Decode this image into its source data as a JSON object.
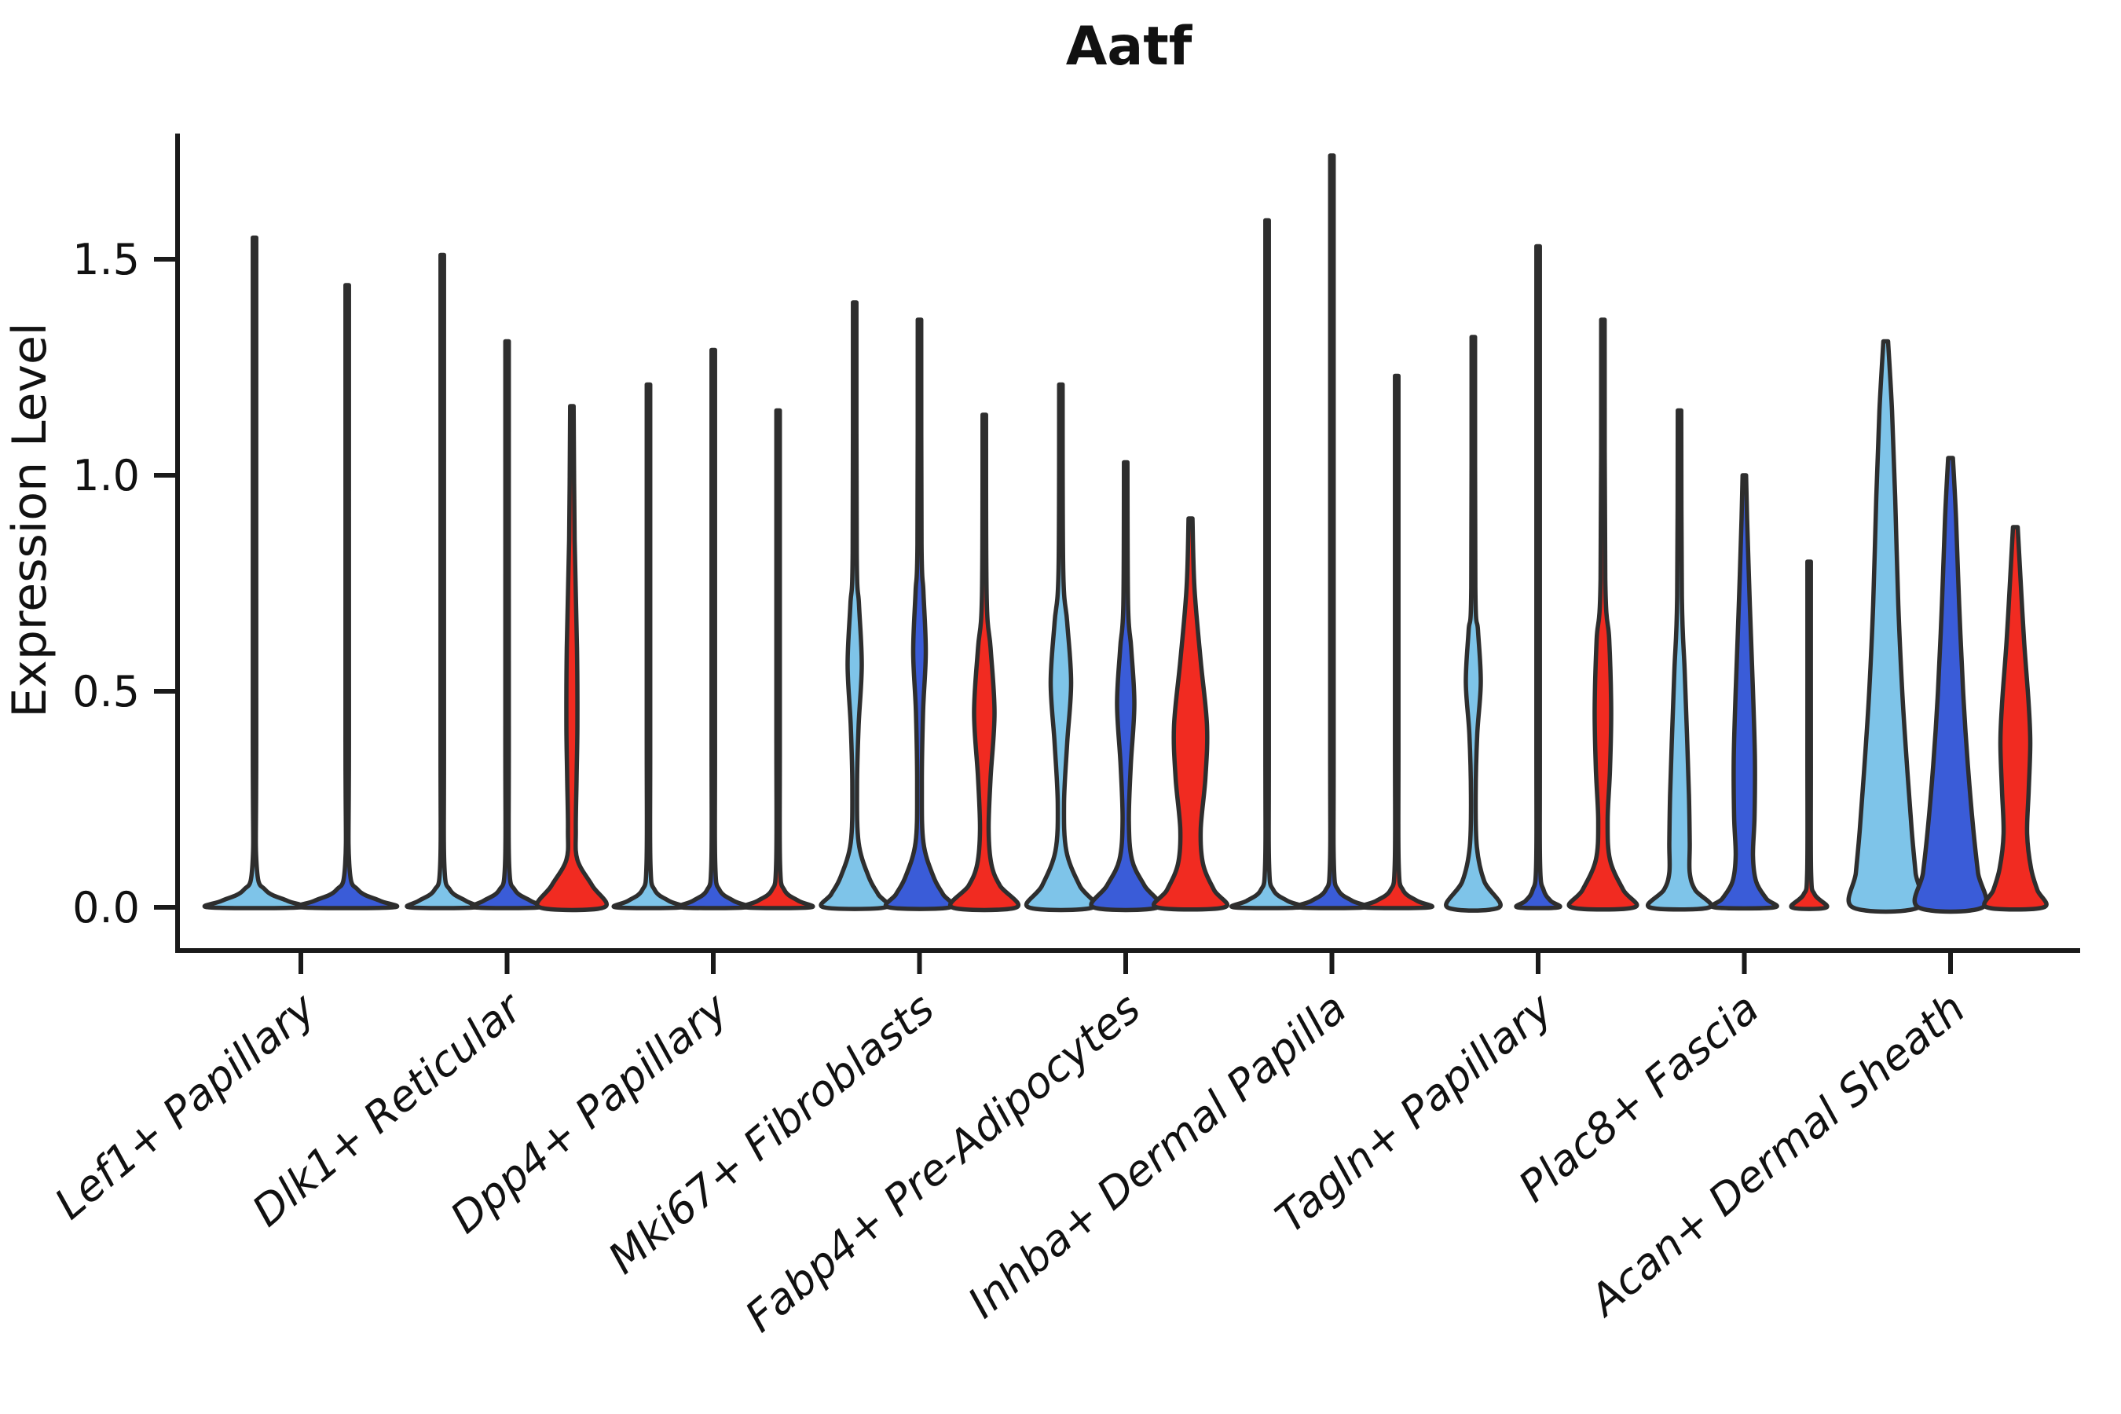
{
  "title": "Aatf",
  "chart_data": {
    "type": "violin",
    "title": "Aatf",
    "ylabel": "Expression Level",
    "xlabel": "",
    "grid": false,
    "legend_position": "none",
    "ylim": [
      0,
      1.79
    ],
    "ytick_values": [
      0,
      0.5,
      1.0,
      1.5
    ],
    "ytick_labels": [
      "0.0",
      "0.5",
      "1.0",
      "1.5"
    ],
    "palette": {
      "lightblue": "#7EC4E9",
      "blue": "#3A5CD8",
      "red": "#F12B21",
      "outline": "#2E2E2E"
    },
    "categories": [
      "Lef1+ Papillary",
      "Dlk1+ Reticular",
      "Dpp4+ Papillary",
      "Mki67+ Fibroblasts",
      "Fabp4+ Pre-Adipocytes",
      "Inhba+ Dermal Papilla",
      "Tagln+ Papillary",
      "Plac8+ Fascia",
      "Acan+ Dermal Sheath"
    ],
    "groups": [
      {
        "category": "Lef1+ Papillary",
        "violins": [
          {
            "color": "lightblue",
            "max": 1.55,
            "profile": [
              [
                1.55,
                2.2
              ],
              [
                0.4,
                2.2
              ],
              [
                0.1,
                2.6
              ],
              [
                0.04,
                14
              ],
              [
                0.015,
                42
              ],
              [
                0,
                58
              ]
            ]
          },
          {
            "color": "blue",
            "max": 1.44,
            "profile": [
              [
                1.44,
                2.2
              ],
              [
                0.4,
                2.2
              ],
              [
                0.1,
                2.6
              ],
              [
                0.04,
                14
              ],
              [
                0.015,
                42
              ],
              [
                0,
                58
              ]
            ]
          }
        ]
      },
      {
        "category": "Dlk1+ Reticular",
        "violins": [
          {
            "color": "lightblue",
            "max": 1.51,
            "profile": [
              [
                1.51,
                2.2
              ],
              [
                0.4,
                2.2
              ],
              [
                0.1,
                2.6
              ],
              [
                0.04,
                10
              ],
              [
                0.015,
                30
              ],
              [
                0,
                41
              ]
            ]
          },
          {
            "color": "blue",
            "max": 1.31,
            "profile": [
              [
                1.31,
                2.2
              ],
              [
                0.4,
                2.2
              ],
              [
                0.1,
                2.6
              ],
              [
                0.04,
                10
              ],
              [
                0.015,
                30
              ],
              [
                0,
                41
              ]
            ]
          },
          {
            "color": "red",
            "max": 1.16,
            "profile": [
              [
                1.16,
                2.2
              ],
              [
                0.85,
                3.5
              ],
              [
                0.6,
                6.5
              ],
              [
                0.42,
                7
              ],
              [
                0.3,
                6
              ],
              [
                0.18,
                5
              ],
              [
                0.11,
                7
              ],
              [
                0.05,
                26
              ],
              [
                0,
                41
              ]
            ]
          }
        ]
      },
      {
        "category": "Dpp4+ Papillary",
        "violins": [
          {
            "color": "lightblue",
            "max": 1.21,
            "profile": [
              [
                1.21,
                2.2
              ],
              [
                0.4,
                2.2
              ],
              [
                0.1,
                2.5
              ],
              [
                0.04,
                8
              ],
              [
                0.015,
                26
              ],
              [
                0,
                41
              ]
            ]
          },
          {
            "color": "blue",
            "max": 1.29,
            "profile": [
              [
                1.29,
                2.2
              ],
              [
                0.4,
                2.2
              ],
              [
                0.1,
                2.5
              ],
              [
                0.04,
                8
              ],
              [
                0.015,
                26
              ],
              [
                0,
                41
              ]
            ]
          },
          {
            "color": "red",
            "max": 1.15,
            "profile": [
              [
                1.15,
                2.2
              ],
              [
                0.4,
                2.2
              ],
              [
                0.1,
                2.5
              ],
              [
                0.04,
                8
              ],
              [
                0.015,
                26
              ],
              [
                0,
                41
              ]
            ]
          }
        ]
      },
      {
        "category": "Mki67+ Fibroblasts",
        "violins": [
          {
            "color": "lightblue",
            "max": 1.4,
            "profile": [
              [
                1.4,
                2.2
              ],
              [
                0.82,
                2.6
              ],
              [
                0.7,
                5.5
              ],
              [
                0.56,
                9
              ],
              [
                0.42,
                5
              ],
              [
                0.28,
                3
              ],
              [
                0.15,
                5
              ],
              [
                0.07,
                18
              ],
              [
                0.03,
                30
              ],
              [
                0,
                39
              ]
            ]
          },
          {
            "color": "blue",
            "max": 1.36,
            "profile": [
              [
                1.36,
                2.2
              ],
              [
                0.84,
                2.6
              ],
              [
                0.73,
                5
              ],
              [
                0.59,
                8
              ],
              [
                0.45,
                4.5
              ],
              [
                0.28,
                3
              ],
              [
                0.15,
                5
              ],
              [
                0.07,
                18
              ],
              [
                0.03,
                30
              ],
              [
                0,
                39
              ]
            ]
          },
          {
            "color": "red",
            "max": 1.14,
            "profile": [
              [
                1.14,
                2.2
              ],
              [
                0.72,
                3
              ],
              [
                0.6,
                8
              ],
              [
                0.45,
                13
              ],
              [
                0.3,
                8
              ],
              [
                0.18,
                5.5
              ],
              [
                0.1,
                9
              ],
              [
                0.05,
                20
              ],
              [
                0,
                41
              ]
            ]
          }
        ]
      },
      {
        "category": "Fabp4+ Pre-Adipocytes",
        "violins": [
          {
            "color": "lightblue",
            "max": 1.21,
            "profile": [
              [
                1.21,
                2.2
              ],
              [
                0.78,
                3
              ],
              [
                0.66,
                8
              ],
              [
                0.52,
                13
              ],
              [
                0.38,
                8
              ],
              [
                0.24,
                4
              ],
              [
                0.13,
                7
              ],
              [
                0.05,
                24
              ],
              [
                0,
                41
              ]
            ]
          },
          {
            "color": "blue",
            "max": 1.03,
            "profile": [
              [
                1.03,
                2.2
              ],
              [
                0.7,
                3
              ],
              [
                0.6,
                7
              ],
              [
                0.47,
                11
              ],
              [
                0.33,
                6.5
              ],
              [
                0.2,
                4
              ],
              [
                0.11,
                8
              ],
              [
                0.05,
                24
              ],
              [
                0,
                41
              ]
            ]
          },
          {
            "color": "red",
            "max": 0.9,
            "profile": [
              [
                0.9,
                2.5
              ],
              [
                0.74,
                5
              ],
              [
                0.57,
                13
              ],
              [
                0.42,
                21
              ],
              [
                0.3,
                19
              ],
              [
                0.18,
                13
              ],
              [
                0.1,
                16
              ],
              [
                0.04,
                30
              ],
              [
                0,
                43
              ]
            ]
          }
        ]
      },
      {
        "category": "Inhba+ Dermal Papilla",
        "violins": [
          {
            "color": "lightblue",
            "max": 1.59,
            "profile": [
              [
                1.59,
                2.2
              ],
              [
                0.4,
                2.2
              ],
              [
                0.1,
                2.5
              ],
              [
                0.04,
                8
              ],
              [
                0.015,
                26
              ],
              [
                0,
                42
              ]
            ]
          },
          {
            "color": "blue",
            "max": 1.74,
            "profile": [
              [
                1.74,
                2.2
              ],
              [
                0.4,
                2.2
              ],
              [
                0.1,
                2.5
              ],
              [
                0.04,
                8
              ],
              [
                0.015,
                26
              ],
              [
                0,
                42
              ]
            ]
          },
          {
            "color": "red",
            "max": 1.23,
            "profile": [
              [
                1.23,
                2.2
              ],
              [
                0.4,
                2.2
              ],
              [
                0.1,
                2.5
              ],
              [
                0.04,
                8
              ],
              [
                0.015,
                26
              ],
              [
                0,
                42
              ]
            ]
          }
        ]
      },
      {
        "category": "Tagln+ Papillary",
        "violins": [
          {
            "color": "lightblue",
            "max": 1.32,
            "profile": [
              [
                1.32,
                2.2
              ],
              [
                0.74,
                2.6
              ],
              [
                0.64,
                6
              ],
              [
                0.52,
                9.5
              ],
              [
                0.4,
                5
              ],
              [
                0.26,
                3
              ],
              [
                0.14,
                4.5
              ],
              [
                0.06,
                14
              ],
              [
                0,
                33
              ]
            ]
          },
          {
            "color": "blue",
            "max": 1.53,
            "profile": [
              [
                1.53,
                2.2
              ],
              [
                0.4,
                2.2
              ],
              [
                0.1,
                2.5
              ],
              [
                0.04,
                7
              ],
              [
                0.015,
                16
              ],
              [
                0,
                26
              ]
            ]
          },
          {
            "color": "red",
            "max": 1.36,
            "profile": [
              [
                1.36,
                2.2
              ],
              [
                0.76,
                3
              ],
              [
                0.62,
                8
              ],
              [
                0.46,
                10.5
              ],
              [
                0.32,
                9
              ],
              [
                0.2,
                6
              ],
              [
                0.11,
                9
              ],
              [
                0.04,
                26
              ],
              [
                0,
                40
              ]
            ]
          }
        ]
      },
      {
        "category": "Plac8+ Fascia",
        "violins": [
          {
            "color": "lightblue",
            "max": 1.15,
            "profile": [
              [
                1.15,
                2.2
              ],
              [
                0.72,
                3
              ],
              [
                0.55,
                6.5
              ],
              [
                0.4,
                9.5
              ],
              [
                0.26,
                12
              ],
              [
                0.15,
                13
              ],
              [
                0.08,
                13
              ],
              [
                0.04,
                20
              ],
              [
                0,
                38
              ]
            ]
          },
          {
            "color": "blue",
            "max": 1.0,
            "profile": [
              [
                1.0,
                2.2
              ],
              [
                0.9,
                3.5
              ],
              [
                0.7,
                7
              ],
              [
                0.5,
                11
              ],
              [
                0.34,
                13.5
              ],
              [
                0.21,
                13
              ],
              [
                0.12,
                11
              ],
              [
                0.06,
                15
              ],
              [
                0.02,
                28
              ],
              [
                0,
                38
              ]
            ]
          },
          {
            "color": "red",
            "max": 0.8,
            "profile": [
              [
                0.8,
                2.2
              ],
              [
                0.35,
                2.2
              ],
              [
                0.08,
                2.5
              ],
              [
                0.03,
                7
              ],
              [
                0,
                22
              ]
            ]
          }
        ]
      },
      {
        "category": "Acan+ Dermal Sheath",
        "violins": [
          {
            "color": "lightblue",
            "max": 1.31,
            "profile": [
              [
                1.31,
                3
              ],
              [
                1.15,
                8
              ],
              [
                0.95,
                12
              ],
              [
                0.7,
                16
              ],
              [
                0.5,
                21
              ],
              [
                0.33,
                27
              ],
              [
                0.18,
                33
              ],
              [
                0.08,
                38
              ],
              [
                0,
                42
              ]
            ]
          },
          {
            "color": "blue",
            "max": 1.04,
            "profile": [
              [
                1.04,
                3
              ],
              [
                0.9,
                7
              ],
              [
                0.7,
                11
              ],
              [
                0.5,
                16
              ],
              [
                0.33,
                22
              ],
              [
                0.18,
                29
              ],
              [
                0.08,
                35
              ],
              [
                0,
                41
              ]
            ]
          },
          {
            "color": "red",
            "max": 0.88,
            "profile": [
              [
                0.88,
                3
              ],
              [
                0.78,
                6
              ],
              [
                0.62,
                11
              ],
              [
                0.47,
                17
              ],
              [
                0.38,
                19
              ],
              [
                0.27,
                17
              ],
              [
                0.17,
                15
              ],
              [
                0.09,
                20
              ],
              [
                0.04,
                28
              ],
              [
                0,
                36
              ]
            ]
          }
        ]
      }
    ]
  }
}
